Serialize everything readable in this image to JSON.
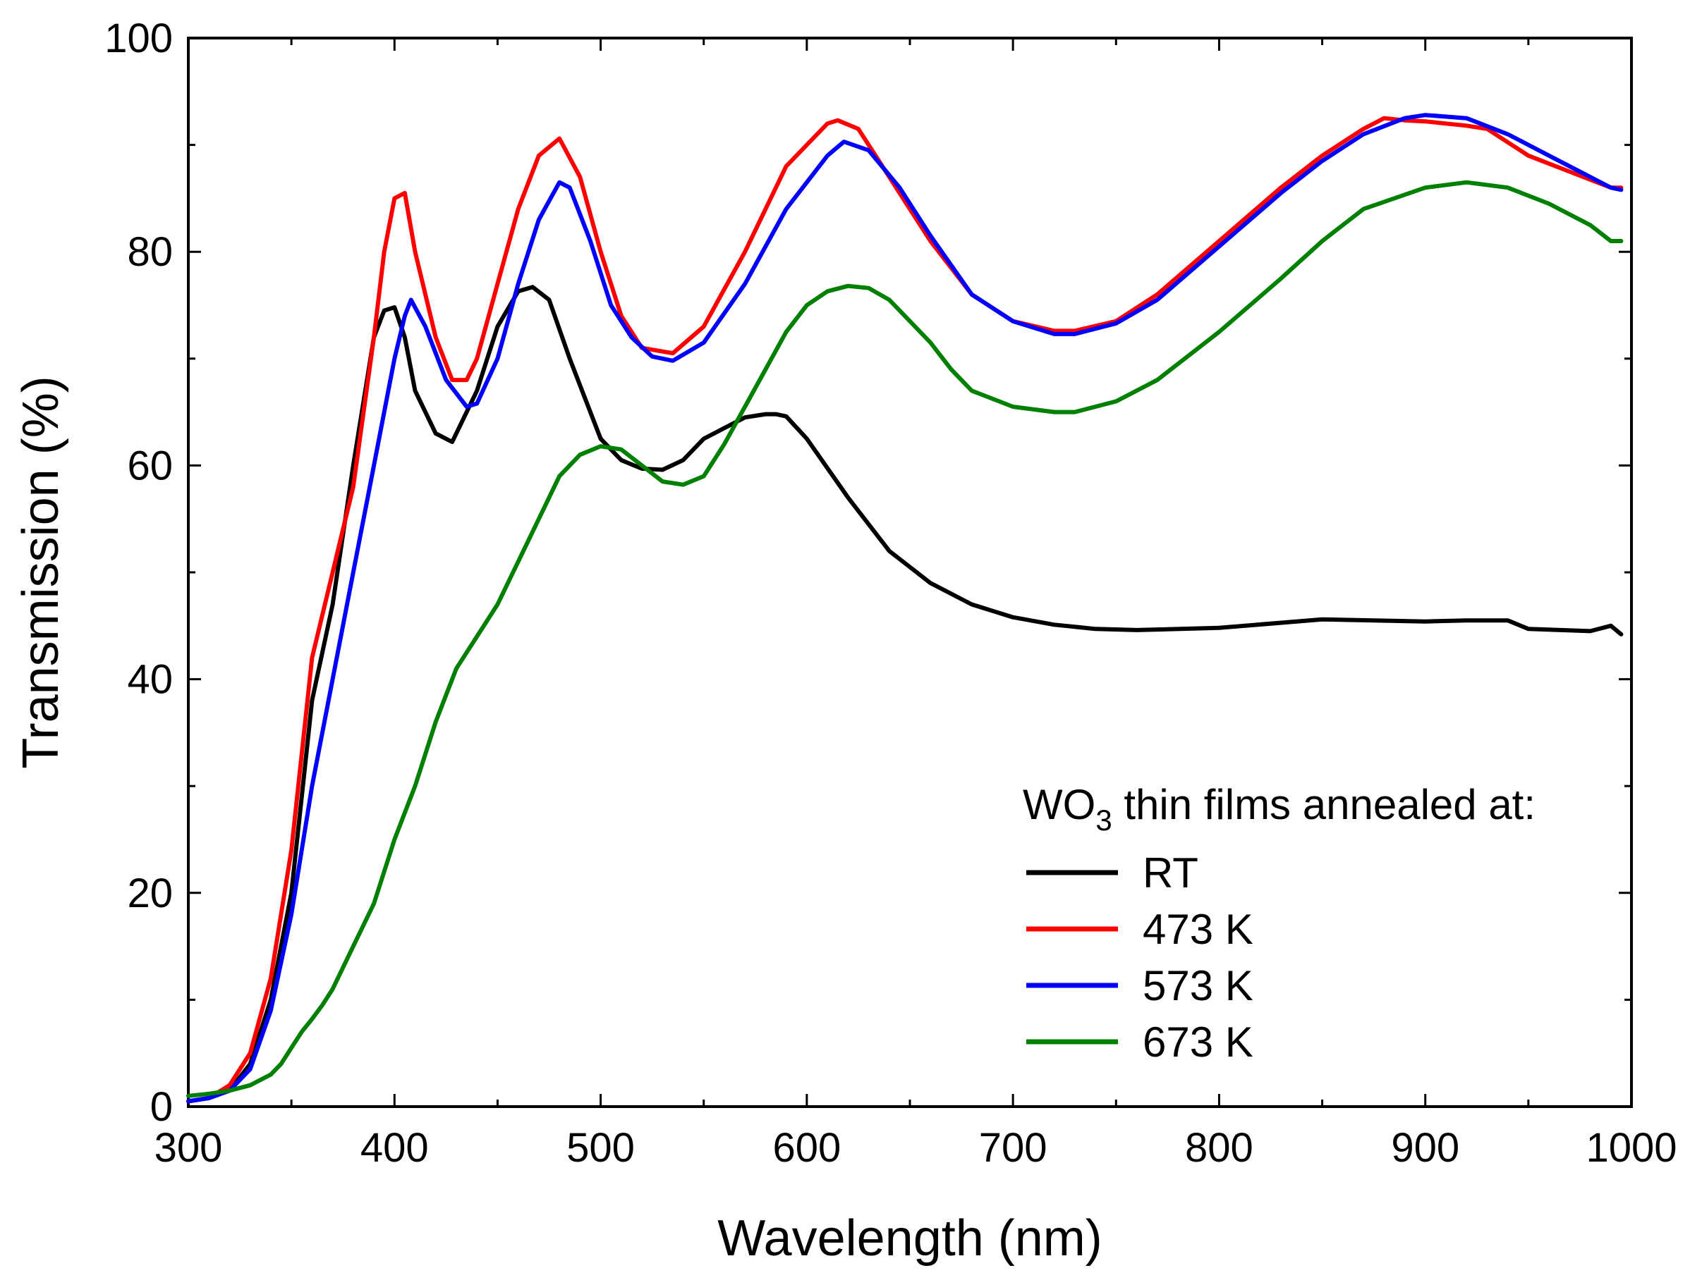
{
  "chart_data": {
    "type": "line",
    "title": "",
    "xlabel": "Wavelength (nm)",
    "ylabel": "Transmission (%)",
    "xlim": [
      300,
      1000
    ],
    "ylim": [
      0,
      100
    ],
    "xticks": [
      300,
      400,
      500,
      600,
      700,
      800,
      900,
      1000
    ],
    "yticks": [
      0,
      20,
      40,
      60,
      80,
      100
    ],
    "grid": false,
    "legend": {
      "position": "bottom-right",
      "title_main": "WO",
      "title_sub": "3",
      "title_rest": " thin films annealed at:"
    },
    "series": [
      {
        "name": "RT",
        "color": "#000000",
        "x": [
          300,
          310,
          320,
          330,
          340,
          350,
          355,
          360,
          370,
          380,
          390,
          395,
          400,
          405,
          410,
          420,
          428,
          440,
          450,
          460,
          467,
          475,
          485,
          500,
          510,
          520,
          530,
          540,
          550,
          560,
          570,
          580,
          585,
          590,
          600,
          620,
          640,
          660,
          680,
          700,
          720,
          740,
          760,
          800,
          850,
          900,
          920,
          940,
          950,
          980,
          990,
          995
        ],
        "y": [
          0.5,
          0.8,
          1.5,
          4,
          10,
          20,
          29,
          38,
          47,
          60,
          72,
          74.5,
          74.8,
          72,
          67,
          63,
          62.2,
          67,
          73,
          76.3,
          76.7,
          75.5,
          70,
          62.5,
          60.5,
          59.7,
          59.6,
          60.5,
          62.5,
          63.5,
          64.5,
          64.8,
          64.8,
          64.6,
          62.5,
          57,
          52,
          49,
          47,
          45.8,
          45.1,
          44.7,
          44.6,
          44.8,
          45.6,
          45.4,
          45.5,
          45.5,
          44.7,
          44.5,
          45,
          44.2
        ]
      },
      {
        "name": "473 K",
        "color": "#ff0000",
        "x": [
          300,
          310,
          320,
          330,
          340,
          350,
          355,
          360,
          370,
          380,
          390,
          395,
          400,
          405,
          410,
          420,
          428,
          435,
          440,
          450,
          460,
          470,
          480,
          490,
          500,
          510,
          520,
          535,
          550,
          570,
          590,
          610,
          615,
          625,
          640,
          660,
          680,
          700,
          720,
          730,
          750,
          770,
          800,
          830,
          850,
          870,
          880,
          890,
          900,
          910,
          920,
          930,
          950,
          970,
          990,
          995
        ],
        "y": [
          0.5,
          0.8,
          2,
          5,
          12,
          24,
          33,
          42,
          50,
          58,
          72,
          80,
          85,
          85.5,
          80,
          72,
          68,
          68,
          70,
          77,
          84,
          89,
          90.6,
          87,
          80,
          74,
          71,
          70.5,
          73,
          80,
          88,
          92,
          92.3,
          91.5,
          87,
          81,
          76,
          73.5,
          72.6,
          72.6,
          73.5,
          76,
          81,
          86,
          89,
          91.5,
          92.5,
          92.3,
          92.2,
          92,
          91.8,
          91.5,
          89,
          87.5,
          86,
          86
        ]
      },
      {
        "name": "573 K",
        "color": "#0000ff",
        "x": [
          300,
          310,
          320,
          330,
          340,
          350,
          360,
          370,
          380,
          390,
          400,
          405,
          408,
          415,
          425,
          435,
          440,
          450,
          460,
          470,
          480,
          485,
          495,
          505,
          515,
          525,
          535,
          550,
          570,
          590,
          610,
          618,
          630,
          645,
          660,
          680,
          700,
          720,
          730,
          750,
          770,
          800,
          830,
          850,
          870,
          890,
          900,
          920,
          940,
          960,
          980,
          990,
          995
        ],
        "y": [
          0.5,
          0.8,
          1.5,
          3.5,
          9,
          18,
          30,
          40,
          50,
          60,
          70,
          74,
          75.5,
          73,
          68,
          65.5,
          65.8,
          70,
          77,
          83,
          86.5,
          86,
          81,
          75,
          72,
          70.2,
          69.8,
          71.5,
          77,
          84,
          89,
          90.3,
          89.5,
          86,
          81.5,
          76,
          73.5,
          72.3,
          72.3,
          73.3,
          75.5,
          80.5,
          85.5,
          88.5,
          91,
          92.5,
          92.8,
          92.5,
          91,
          89,
          87,
          86,
          85.8
        ]
      },
      {
        "name": "673 K",
        "color": "#008000",
        "x": [
          300,
          310,
          320,
          330,
          340,
          345,
          350,
          355,
          360,
          365,
          370,
          380,
          390,
          400,
          410,
          420,
          430,
          440,
          450,
          460,
          470,
          480,
          490,
          500,
          510,
          520,
          530,
          540,
          550,
          560,
          570,
          580,
          590,
          600,
          610,
          620,
          630,
          640,
          650,
          660,
          670,
          680,
          700,
          720,
          730,
          750,
          770,
          800,
          830,
          850,
          870,
          900,
          920,
          940,
          960,
          980,
          990,
          995
        ],
        "y": [
          1,
          1.2,
          1.5,
          2,
          3,
          4,
          5.5,
          7,
          8.2,
          9.5,
          11,
          15,
          19,
          25,
          30,
          36,
          41,
          44,
          47,
          51,
          55,
          59,
          61,
          61.8,
          61.5,
          60,
          58.5,
          58.2,
          59,
          62,
          65.5,
          69,
          72.5,
          75,
          76.3,
          76.8,
          76.6,
          75.5,
          73.5,
          71.5,
          69,
          67,
          65.5,
          65,
          65,
          66,
          68,
          72.5,
          77.5,
          81,
          84,
          86,
          86.5,
          86,
          84.5,
          82.5,
          81,
          81
        ]
      }
    ]
  }
}
